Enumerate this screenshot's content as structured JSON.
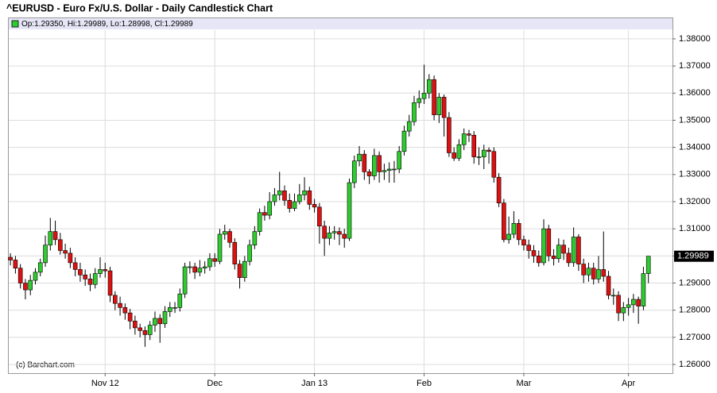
{
  "chart_data": {
    "type": "candlestick",
    "title": "^EURUSD - Euro Fx/U.S. Dollar - Daily Candlestick Chart",
    "legend_text": "Op:1.29350, Hi:1.29989, Lo:1.28998, Cl:1.29989",
    "watermark": "(c) Barchart.com",
    "up_color": "#2ecc2e",
    "down_color": "#dd1111",
    "grid": true,
    "ylim": [
      1.2568,
      1.3832
    ],
    "yticks": [
      {
        "value": 1.26,
        "label": "1.26000"
      },
      {
        "value": 1.27,
        "label": "1.27000"
      },
      {
        "value": 1.28,
        "label": "1.28000"
      },
      {
        "value": 1.29,
        "label": "1.29000"
      },
      {
        "value": 1.3,
        "label": "1.30000"
      },
      {
        "value": 1.31,
        "label": "1.31000"
      },
      {
        "value": 1.32,
        "label": "1.32000"
      },
      {
        "value": 1.33,
        "label": "1.33000"
      },
      {
        "value": 1.34,
        "label": "1.34000"
      },
      {
        "value": 1.35,
        "label": "1.35000"
      },
      {
        "value": 1.36,
        "label": "1.36000"
      },
      {
        "value": 1.37,
        "label": "1.37000"
      },
      {
        "value": 1.38,
        "label": "1.38000"
      }
    ],
    "last_price": {
      "value": 1.29989,
      "label": "1.29989"
    },
    "categories": [
      null,
      null,
      null,
      null,
      null,
      null,
      null,
      null,
      null,
      null,
      null,
      null,
      null,
      null,
      null,
      null,
      null,
      null,
      null,
      "Nov 12",
      null,
      null,
      null,
      null,
      null,
      null,
      null,
      null,
      null,
      null,
      null,
      null,
      null,
      null,
      null,
      null,
      null,
      null,
      null,
      null,
      null,
      "Dec",
      null,
      null,
      null,
      null,
      null,
      null,
      null,
      null,
      null,
      null,
      null,
      null,
      null,
      null,
      null,
      null,
      null,
      null,
      null,
      "Jan 13",
      null,
      null,
      null,
      null,
      null,
      null,
      null,
      null,
      null,
      null,
      null,
      null,
      null,
      null,
      null,
      null,
      null,
      null,
      null,
      null,
      null,
      "Feb",
      null,
      null,
      null,
      null,
      null,
      null,
      null,
      null,
      null,
      null,
      null,
      null,
      null,
      null,
      null,
      null,
      null,
      null,
      null,
      "Mar",
      null,
      null,
      null,
      null,
      null,
      null,
      null,
      null,
      null,
      null,
      null,
      null,
      null,
      null,
      null,
      null,
      null,
      null,
      null,
      null,
      "Apr",
      null,
      null,
      null,
      null
    ],
    "open": [
      1.2995,
      1.2985,
      1.2955,
      1.29,
      1.2875,
      1.291,
      1.294,
      1.2975,
      1.304,
      1.309,
      1.306,
      1.302,
      1.301,
      1.2975,
      1.295,
      1.293,
      1.2915,
      1.2895,
      1.2935,
      1.295,
      1.2945,
      1.2855,
      1.2825,
      1.281,
      1.279,
      1.276,
      1.2735,
      1.2725,
      1.271,
      1.2745,
      1.277,
      1.275,
      1.2795,
      1.281,
      1.281,
      1.286,
      1.296,
      1.296,
      1.294,
      1.2955,
      1.296,
      1.299,
      1.298,
      1.308,
      1.309,
      1.305,
      1.297,
      1.292,
      1.298,
      1.304,
      1.309,
      1.316,
      1.315,
      1.32,
      1.3225,
      1.324,
      1.3205,
      1.3175,
      1.32,
      1.3225,
      1.324,
      1.319,
      1.318,
      1.311,
      1.3065,
      1.3085,
      1.309,
      1.308,
      1.3065,
      1.327,
      1.335,
      1.3375,
      1.331,
      1.3295,
      1.337,
      1.331,
      1.3315,
      1.332,
      1.332,
      1.3385,
      1.346,
      1.3495,
      1.3565,
      1.358,
      1.36,
      1.365,
      1.352,
      1.3585,
      1.351,
      1.338,
      1.336,
      1.341,
      1.345,
      1.3445,
      1.3365,
      1.3365,
      1.339,
      1.3385,
      1.329,
      1.3195,
      1.306,
      1.308,
      1.312,
      1.306,
      1.304,
      1.302,
      1.3,
      1.2975,
      1.31,
      1.3,
      1.299,
      1.304,
      1.301,
      1.2975,
      1.307,
      1.297,
      1.293,
      1.2955,
      1.2915,
      1.295,
      1.2925,
      1.2855,
      1.2855,
      1.279,
      1.281,
      1.282,
      1.284,
      1.2815,
      1.2935
    ],
    "high": [
      1.301,
      1.3,
      1.297,
      1.2915,
      1.293,
      1.2955,
      1.299,
      1.3075,
      1.314,
      1.313,
      1.3085,
      1.3045,
      1.303,
      1.2995,
      1.2975,
      1.295,
      1.2935,
      1.2955,
      1.2995,
      1.2975,
      1.296,
      1.287,
      1.285,
      1.2825,
      1.2805,
      1.278,
      1.275,
      1.274,
      1.276,
      1.2795,
      1.2785,
      1.2815,
      1.283,
      1.283,
      1.288,
      1.2975,
      1.298,
      1.2975,
      1.2985,
      1.298,
      1.301,
      1.301,
      1.31,
      1.3115,
      1.31,
      1.3065,
      1.2985,
      1.3,
      1.306,
      1.311,
      1.3175,
      1.3185,
      1.3235,
      1.325,
      1.331,
      1.326,
      1.323,
      1.323,
      1.3265,
      1.329,
      1.3255,
      1.321,
      1.3195,
      1.313,
      1.311,
      1.311,
      1.3105,
      1.31,
      1.3285,
      1.337,
      1.3405,
      1.339,
      1.332,
      1.3395,
      1.3385,
      1.334,
      1.3345,
      1.335,
      1.3405,
      1.348,
      1.352,
      1.359,
      1.361,
      1.3705,
      1.367,
      1.3665,
      1.36,
      1.3595,
      1.353,
      1.34,
      1.343,
      1.347,
      1.3465,
      1.346,
      1.34,
      1.341,
      1.34,
      1.34,
      1.3305,
      1.321,
      1.3145,
      1.3165,
      1.3135,
      1.3075,
      1.306,
      1.304,
      1.302,
      1.3135,
      1.3115,
      1.3025,
      1.3065,
      1.306,
      1.303,
      1.3105,
      1.308,
      1.299,
      1.2975,
      1.2975,
      1.3,
      1.309,
      1.2945,
      1.288,
      1.287,
      1.283,
      1.2845,
      1.286,
      1.285,
      1.296,
      1.29989
    ],
    "low": [
      1.2965,
      1.2935,
      1.288,
      1.284,
      1.2855,
      1.2895,
      1.2925,
      1.296,
      1.302,
      1.304,
      1.3005,
      1.299,
      1.2955,
      1.2925,
      1.2905,
      1.289,
      1.287,
      1.288,
      1.292,
      1.292,
      1.283,
      1.28,
      1.278,
      1.2765,
      1.273,
      1.271,
      1.27,
      1.2665,
      1.269,
      1.272,
      1.268,
      1.2735,
      1.2775,
      1.279,
      1.2795,
      1.2845,
      1.2935,
      1.2915,
      1.2925,
      1.2935,
      1.2945,
      1.296,
      1.297,
      1.306,
      1.303,
      1.295,
      1.288,
      1.2905,
      1.2965,
      1.3025,
      1.3075,
      1.313,
      1.3135,
      1.3185,
      1.3205,
      1.3185,
      1.316,
      1.3165,
      1.319,
      1.3205,
      1.317,
      1.316,
      1.3045,
      1.3,
      1.304,
      1.306,
      1.304,
      1.303,
      1.3055,
      1.325,
      1.333,
      1.328,
      1.3265,
      1.328,
      1.327,
      1.328,
      1.327,
      1.327,
      1.3305,
      1.337,
      1.344,
      1.348,
      1.3545,
      1.356,
      1.358,
      1.35,
      1.349,
      1.344,
      1.3365,
      1.335,
      1.335,
      1.339,
      1.342,
      1.334,
      1.3335,
      1.332,
      1.334,
      1.327,
      1.318,
      1.305,
      1.3045,
      1.3065,
      1.304,
      1.302,
      1.299,
      1.2975,
      1.296,
      1.2965,
      1.298,
      1.2965,
      1.2975,
      1.2985,
      1.296,
      1.296,
      1.2945,
      1.29,
      1.2905,
      1.2895,
      1.29,
      1.2905,
      1.284,
      1.282,
      1.276,
      1.276,
      1.278,
      1.279,
      1.275,
      1.28,
      1.28998
    ],
    "close": [
      1.2985,
      1.2955,
      1.29,
      1.2875,
      1.291,
      1.294,
      1.2975,
      1.304,
      1.309,
      1.306,
      1.302,
      1.301,
      1.2975,
      1.295,
      1.293,
      1.2915,
      1.2895,
      1.2935,
      1.295,
      1.2945,
      1.2855,
      1.2825,
      1.281,
      1.279,
      1.276,
      1.2735,
      1.2725,
      1.271,
      1.2745,
      1.277,
      1.275,
      1.2795,
      1.281,
      1.281,
      1.286,
      1.296,
      1.296,
      1.294,
      1.2955,
      1.296,
      1.299,
      1.298,
      1.308,
      1.309,
      1.305,
      1.297,
      1.292,
      1.298,
      1.304,
      1.309,
      1.316,
      1.315,
      1.32,
      1.3225,
      1.324,
      1.3205,
      1.3175,
      1.32,
      1.3225,
      1.324,
      1.319,
      1.318,
      1.311,
      1.3065,
      1.3085,
      1.309,
      1.308,
      1.3065,
      1.327,
      1.335,
      1.3375,
      1.331,
      1.3295,
      1.337,
      1.331,
      1.3315,
      1.332,
      1.332,
      1.3385,
      1.346,
      1.3495,
      1.3565,
      1.358,
      1.36,
      1.365,
      1.352,
      1.3585,
      1.351,
      1.338,
      1.336,
      1.341,
      1.345,
      1.3445,
      1.3365,
      1.3365,
      1.339,
      1.3385,
      1.329,
      1.3195,
      1.306,
      1.308,
      1.312,
      1.306,
      1.304,
      1.302,
      1.3,
      1.2975,
      1.31,
      1.3,
      1.299,
      1.304,
      1.301,
      1.2975,
      1.307,
      1.297,
      1.293,
      1.2955,
      1.2915,
      1.295,
      1.2925,
      1.2855,
      1.2855,
      1.279,
      1.281,
      1.282,
      1.284,
      1.2815,
      1.2935,
      1.29989
    ]
  }
}
